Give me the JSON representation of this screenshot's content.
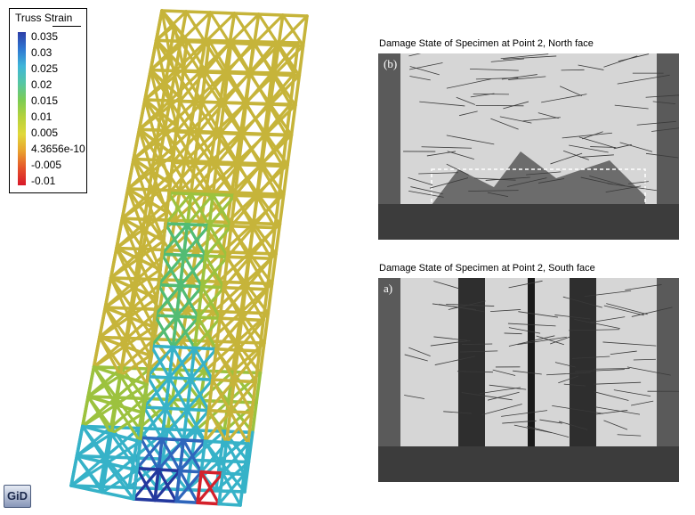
{
  "legend": {
    "title": "Truss Strain",
    "ticks": [
      "0.035",
      "0.03",
      "0.025",
      "0.02",
      "0.015",
      "0.01",
      "0.005",
      "4.3656e-10",
      "-0.005",
      "-0.01"
    ],
    "gradient_colors": [
      "#2d3fa8",
      "#2f78d2",
      "#3fb6d9",
      "#55c6a4",
      "#7ccc54",
      "#b6d23c",
      "#e0d83a",
      "#e9a12e",
      "#e5522a",
      "#d8182a"
    ]
  },
  "truss": {
    "colors": {
      "base": "#c6b43a",
      "base_dark": "#8d7d1c",
      "mid": "#9cc23e",
      "green": "#52bc74",
      "cyan": "#36b2c8",
      "blue": "#2f66bc",
      "dark_blue": "#23389e",
      "red": "#d4202a"
    }
  },
  "photos": [
    {
      "title": "Damage State of Specimen at Point 2, North face",
      "letter": "(b)"
    },
    {
      "title": "Damage State of Specimen at Point 2, South face",
      "letter": "a)"
    }
  ],
  "logo": {
    "text": "GiD"
  }
}
